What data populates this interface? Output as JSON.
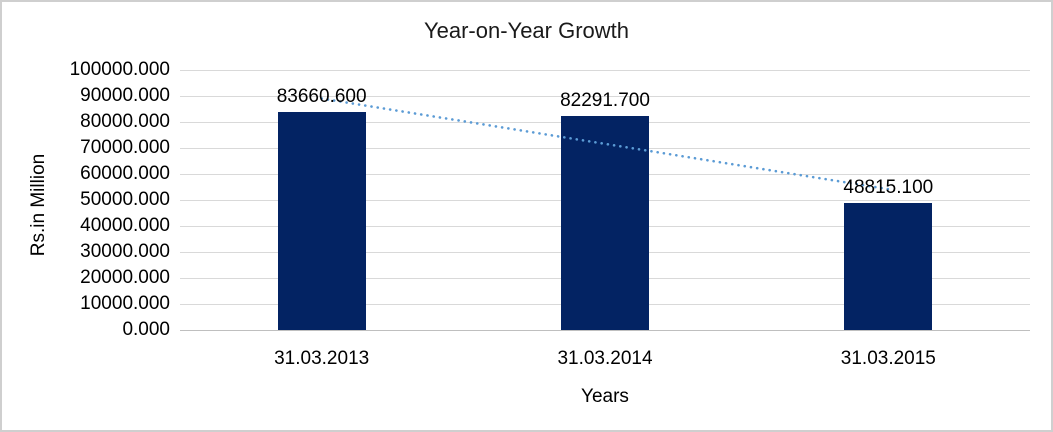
{
  "chart_data": {
    "type": "bar",
    "title": "Year-on-Year Growth",
    "xlabel": "Years",
    "ylabel": "Rs.in Million",
    "categories": [
      "31.03.2013",
      "31.03.2014",
      "31.03.2015"
    ],
    "values": [
      83660.6,
      82291.7,
      48815.1
    ],
    "data_labels": [
      "83660.600",
      "82291.700",
      "48815.100"
    ],
    "ylim": [
      0,
      100000
    ],
    "ytick_step": 10000,
    "ytick_labels": [
      "0.000",
      "10000.000",
      "20000.000",
      "30000.000",
      "40000.000",
      "50000.000",
      "60000.000",
      "70000.000",
      "80000.000",
      "90000.000",
      "100000.000"
    ],
    "grid": true,
    "legend": "none",
    "trendline": {
      "type": "linear",
      "style": "dotted",
      "color": "#5B9BD5"
    },
    "colors": {
      "bar": "#032363",
      "gridline": "#d9d9d9",
      "axis_line": "#bfbfbf",
      "text": "#000000",
      "border": "#cfcfcf",
      "background": "#ffffff"
    }
  }
}
